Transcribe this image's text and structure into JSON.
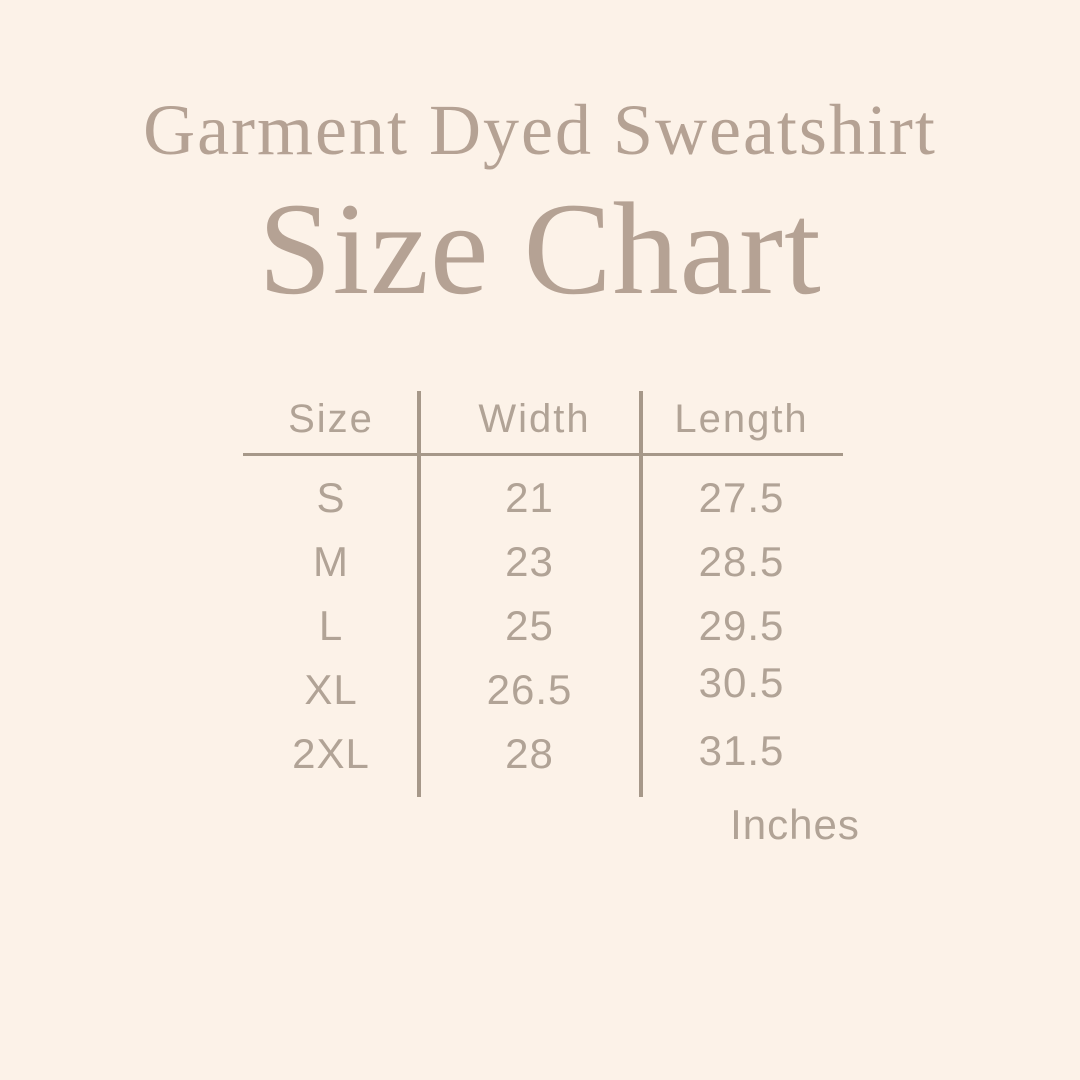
{
  "header": {
    "subtitle": "Garment Dyed Sweatshirt",
    "title": "Size Chart"
  },
  "table": {
    "columns": [
      "Size",
      "Width",
      "Length"
    ],
    "rows": [
      {
        "size": "S",
        "width": "21",
        "length": "27.5"
      },
      {
        "size": "M",
        "width": "23",
        "length": "28.5"
      },
      {
        "size": "L",
        "width": "25",
        "length": "29.5"
      },
      {
        "size": "XL",
        "width": "26.5",
        "length": "30.5"
      },
      {
        "size": "2XL",
        "width": "28",
        "length": "31.5"
      }
    ],
    "unit_note": "Inches"
  },
  "colors": {
    "background": "#fcf2e8",
    "title_text": "#b5a294",
    "table_text": "#b1a396",
    "divider_lines": "#a69889"
  },
  "chart_data": {
    "type": "table",
    "title": "Garment Dyed Sweatshirt Size Chart",
    "columns": [
      "Size",
      "Width",
      "Length"
    ],
    "rows": [
      [
        "S",
        21,
        27.5
      ],
      [
        "M",
        23,
        28.5
      ],
      [
        "L",
        25,
        29.5
      ],
      [
        "XL",
        26.5,
        30.5
      ],
      [
        "2XL",
        28,
        31.5
      ]
    ],
    "unit": "Inches",
    "layout_hints": {
      "column_dividers": true,
      "header_underline": true,
      "outer_border": false
    }
  }
}
